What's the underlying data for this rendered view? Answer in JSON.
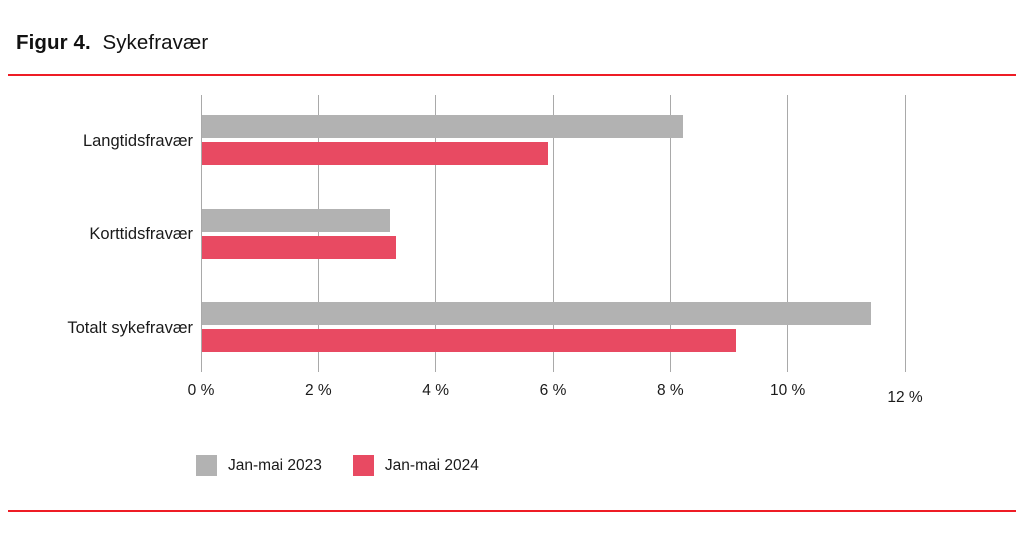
{
  "title": {
    "prefix": "Figur 4.",
    "text": "Sykefravær"
  },
  "colors": {
    "series_2023": "#b2b2b2",
    "series_2024": "#e84a62",
    "rule_red": "#ee1c25",
    "gridline": "#a9a9a9",
    "text": "#1a1a1a"
  },
  "chart_data": {
    "type": "bar",
    "orientation": "horizontal",
    "title": "Figur 4. Sykefravær",
    "categories": [
      "Langtidsfravær",
      "Korttidsfravær",
      "Totalt sykefravær"
    ],
    "series": [
      {
        "name": "Jan-mai 2023",
        "color": "#b2b2b2",
        "values": [
          8.2,
          3.2,
          11.4
        ]
      },
      {
        "name": "Jan-mai 2024",
        "color": "#e84a62",
        "values": [
          5.9,
          3.3,
          9.1
        ]
      }
    ],
    "xlabel": "",
    "ylabel": "",
    "xlim": [
      0,
      12
    ],
    "xticks": [
      0,
      2,
      4,
      6,
      8,
      10,
      12
    ],
    "xtick_labels": [
      "0 %",
      "2 %",
      "4 %",
      "6 %",
      "8 %",
      "10 %",
      "12 %"
    ],
    "grid": true,
    "legend_position": "bottom-left"
  }
}
